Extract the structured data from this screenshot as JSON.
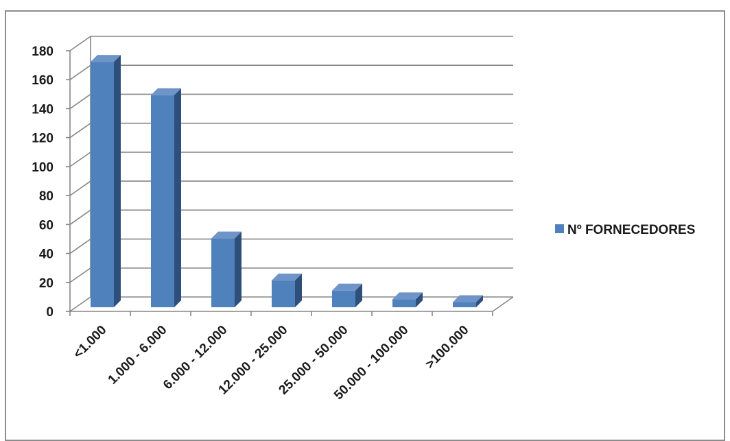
{
  "chart_data": {
    "type": "bar",
    "title": "",
    "xlabel": "",
    "ylabel": "",
    "categories": [
      "<1.000",
      "1.000 - 6.000",
      "6.000 - 12.000",
      "12.000 - 25.000",
      "25.000 - 50.000",
      "50.000 - 100.000",
      ">100.000"
    ],
    "series": [
      {
        "name": "Nº FORNECEDORES",
        "values": [
          170,
          147,
          48,
          19,
          12,
          6,
          4
        ]
      }
    ],
    "ylim": [
      0,
      180
    ],
    "yticks": [
      "0",
      "20",
      "40",
      "60",
      "80",
      "100",
      "120",
      "140",
      "160",
      "180"
    ],
    "grid": true,
    "legend_position": "right",
    "colors": {
      "bar_front": "#4f81bd",
      "bar_side": "#2d4f7a",
      "bar_top": "#6f95c8",
      "grid": "#868686"
    }
  }
}
